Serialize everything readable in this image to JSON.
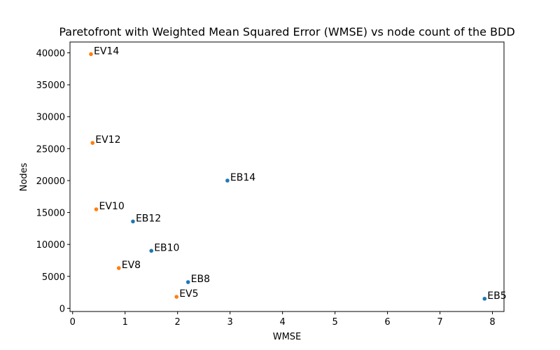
{
  "chart_data": {
    "type": "scatter",
    "title": "Paretofront with Weighted Mean Squared Error (WMSE) vs node count of the BDD",
    "xlabel": "WMSE",
    "ylabel": "Nodes",
    "xlim": [
      -0.05,
      8.22
    ],
    "ylim": [
      -500,
      41700
    ],
    "xticks": [
      0,
      1,
      2,
      3,
      4,
      5,
      6,
      7,
      8
    ],
    "yticks": [
      0,
      5000,
      10000,
      15000,
      20000,
      25000,
      30000,
      35000,
      40000
    ],
    "grid": false,
    "series": [
      {
        "color": "#1f77b4",
        "points": [
          {
            "x": 2.95,
            "y": 20000,
            "label": "EB14"
          },
          {
            "x": 1.15,
            "y": 13600,
            "label": "EB12"
          },
          {
            "x": 1.5,
            "y": 9000,
            "label": "EB10"
          },
          {
            "x": 2.2,
            "y": 4100,
            "label": "EB8"
          },
          {
            "x": 7.85,
            "y": 1500,
            "label": "EB5"
          }
        ]
      },
      {
        "color": "#ff7f0e",
        "points": [
          {
            "x": 0.35,
            "y": 39800,
            "label": "EV14"
          },
          {
            "x": 0.38,
            "y": 25900,
            "label": "EV12"
          },
          {
            "x": 0.45,
            "y": 15500,
            "label": "EV10"
          },
          {
            "x": 0.88,
            "y": 6300,
            "label": "EV8"
          },
          {
            "x": 1.98,
            "y": 1800,
            "label": "EV5"
          }
        ]
      }
    ]
  }
}
